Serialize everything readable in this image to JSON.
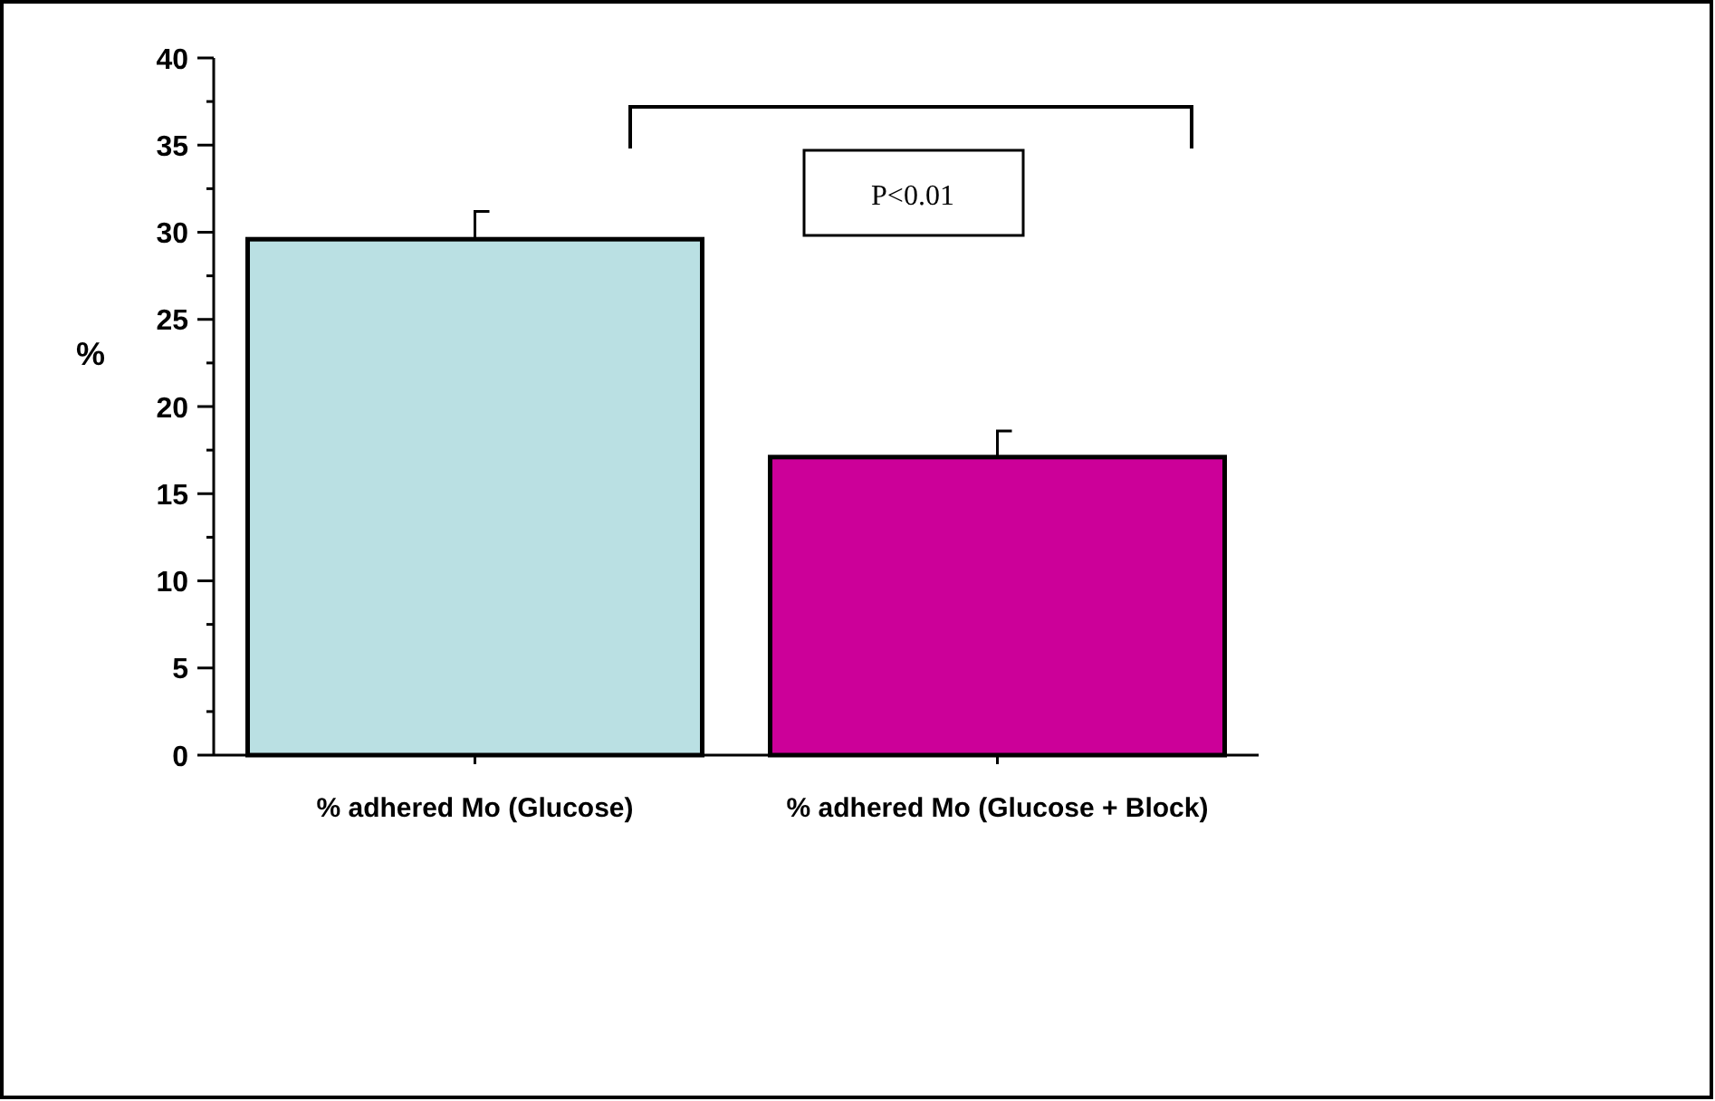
{
  "chart_data": {
    "type": "bar",
    "ylabel": "%",
    "categories": [
      "% adhered Mo (Glucose)",
      "% adhered Mo (Glucose + Block)"
    ],
    "values": [
      29.6,
      17.1
    ],
    "colors": [
      "#bae0e3",
      "#cc0099"
    ],
    "errors": [
      [
        29.6,
        31.2
      ],
      [
        17.1,
        18.6
      ]
    ],
    "ylim": [
      0,
      40
    ],
    "yticks": [
      0,
      {
        "value": 2.5,
        "label": null
      },
      5,
      {
        "value": 7.5,
        "label": null
      },
      10,
      {
        "value": 12.5,
        "label": null
      },
      15,
      {
        "value": 17.5,
        "label": null
      },
      20,
      {
        "value": 22.5,
        "label": null
      },
      25,
      {
        "value": 27.5,
        "label": null
      },
      30,
      {
        "value": 32.5,
        "label": null
      },
      35,
      {
        "value": 37.5,
        "label": null
      },
      40
    ],
    "annotations": [
      "P<0.01"
    ]
  }
}
